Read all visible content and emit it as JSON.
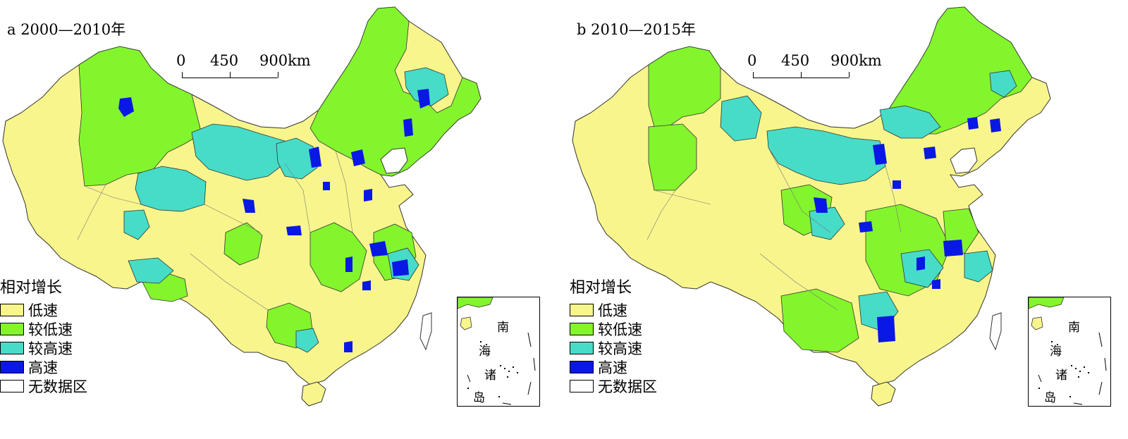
{
  "colors": {
    "low": "#f8f58c",
    "lower": "#83f52c",
    "higher": "#46dcc8",
    "high": "#0a18e6",
    "nodata": "#ffffff",
    "boundary": "#555555"
  },
  "panels": [
    {
      "title": "a 2000—2010年",
      "scale": {
        "labels": [
          "0",
          "450",
          "900km"
        ]
      },
      "legend": {
        "title": "相对增长",
        "items": [
          {
            "label": "低速",
            "color": "#f8f58c"
          },
          {
            "label": "较低速",
            "color": "#83f52c"
          },
          {
            "label": "较高速",
            "color": "#46dcc8"
          },
          {
            "label": "高速",
            "color": "#0a18e6"
          },
          {
            "label": "无数据区",
            "color": "#ffffff"
          }
        ]
      },
      "inset": {
        "chars": [
          "南",
          "海",
          "诸",
          "岛"
        ]
      }
    },
    {
      "title": "b 2010—2015年",
      "scale": {
        "labels": [
          "0",
          "450",
          "900km"
        ]
      },
      "legend": {
        "title": "相对增长",
        "items": [
          {
            "label": "低速",
            "color": "#f8f58c"
          },
          {
            "label": "较低速",
            "color": "#83f52c"
          },
          {
            "label": "较高速",
            "color": "#46dcc8"
          },
          {
            "label": "高速",
            "color": "#0a18e6"
          },
          {
            "label": "无数据区",
            "color": "#ffffff"
          }
        ]
      },
      "inset": {
        "chars": [
          "南",
          "海",
          "诸",
          "岛"
        ]
      }
    }
  ]
}
